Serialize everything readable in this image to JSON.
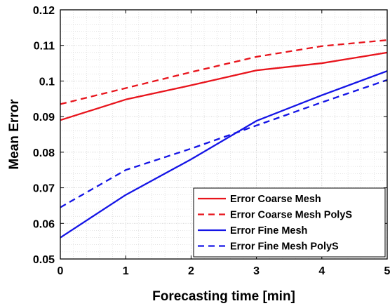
{
  "chart_data": {
    "type": "line",
    "title": "",
    "xlabel": "Forecasting time [min]",
    "ylabel": "Mean Error",
    "xlim": [
      0,
      5
    ],
    "ylim": [
      0.05,
      0.12
    ],
    "xticks": [
      0,
      1,
      2,
      3,
      4,
      5
    ],
    "xtick_labels": [
      "0",
      "1",
      "2",
      "3",
      "4",
      "5"
    ],
    "yticks": [
      0.05,
      0.06,
      0.07,
      0.08,
      0.09,
      0.1,
      0.11,
      0.12
    ],
    "ytick_labels": [
      "0.05",
      "0.06",
      "0.07",
      "0.08",
      "0.09",
      "0.1",
      "0.11",
      "0.12"
    ],
    "grid": true,
    "minor_grid": true,
    "legend_position": "bottom-right",
    "x": [
      0,
      1,
      2,
      3,
      4,
      5
    ],
    "series": [
      {
        "name": "Error Coarse Mesh",
        "color": "#e8141c",
        "dash": "solid",
        "values": [
          0.089,
          0.0948,
          0.0988,
          0.103,
          0.105,
          0.108
        ]
      },
      {
        "name": "Error Coarse Mesh PolyS",
        "color": "#e8141c",
        "dash": "dashed",
        "values": [
          0.0935,
          0.098,
          0.1025,
          0.1068,
          0.1098,
          0.1115
        ]
      },
      {
        "name": "Error Fine Mesh",
        "color": "#1414e6",
        "dash": "solid",
        "values": [
          0.056,
          0.068,
          0.078,
          0.0888,
          0.096,
          0.1028
        ]
      },
      {
        "name": "Error Fine Mesh PolyS",
        "color": "#1414e6",
        "dash": "dashed",
        "values": [
          0.0645,
          0.075,
          0.081,
          0.0875,
          0.094,
          0.1003
        ]
      }
    ]
  }
}
